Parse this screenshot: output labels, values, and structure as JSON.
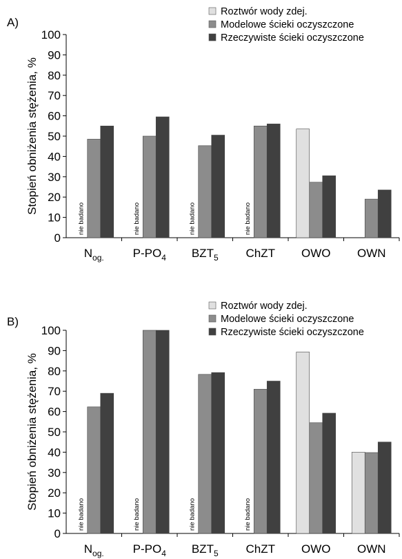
{
  "legend": [
    {
      "label": "Roztwór wody zdej.",
      "color": "#e0e0e0"
    },
    {
      "label": "Modelowe ścieki oczyszczone",
      "color": "#8c8c8c"
    },
    {
      "label": "Rzeczywiste ścieki oczyszczone",
      "color": "#404040"
    }
  ],
  "not_tested_label": "nie badano",
  "chart_data": [
    {
      "type": "bar",
      "panel_label": "A)",
      "ylabel": "Stopień obniżenia stężenia, %",
      "ylim": [
        0,
        100
      ],
      "yticks": [
        0,
        10,
        20,
        30,
        40,
        50,
        60,
        70,
        80,
        90,
        100
      ],
      "categories": [
        {
          "main": "N",
          "sub": "og."
        },
        {
          "main": "P-PO",
          "sub": "4"
        },
        {
          "main": "BZT",
          "sub": "5"
        },
        {
          "main": "ChZT",
          "sub": ""
        },
        {
          "main": "OWO",
          "sub": ""
        },
        {
          "main": "OWN",
          "sub": ""
        }
      ],
      "series": [
        {
          "name": "Roztwór wody zdej.",
          "values": [
            null,
            null,
            null,
            null,
            53.5,
            null
          ]
        },
        {
          "name": "Modelowe ścieki oczyszczone",
          "values": [
            48.5,
            50,
            45.3,
            55,
            27.3,
            19
          ]
        },
        {
          "name": "Rzeczywiste ścieki oczyszczone",
          "values": [
            55,
            59.5,
            50.5,
            56,
            30.5,
            23.5
          ]
        }
      ],
      "not_tested": [
        0,
        1,
        2,
        3
      ]
    },
    {
      "type": "bar",
      "panel_label": "B)",
      "ylabel": "Stopień obniżenia stężenia, %",
      "ylim": [
        0,
        100
      ],
      "yticks": [
        0,
        10,
        20,
        30,
        40,
        50,
        60,
        70,
        80,
        90,
        100
      ],
      "categories": [
        {
          "main": "N",
          "sub": "og."
        },
        {
          "main": "P-PO",
          "sub": "4"
        },
        {
          "main": "BZT",
          "sub": "5"
        },
        {
          "main": "ChZT",
          "sub": ""
        },
        {
          "main": "OWO",
          "sub": ""
        },
        {
          "main": "OWN",
          "sub": ""
        }
      ],
      "series": [
        {
          "name": "Roztwór wody zdej.",
          "values": [
            null,
            null,
            null,
            null,
            89.3,
            40
          ]
        },
        {
          "name": "Modelowe ścieki oczyszczone",
          "values": [
            62.3,
            100,
            78.3,
            71,
            54.5,
            39.8
          ]
        },
        {
          "name": "Rzeczywiste ścieki oczyszczone",
          "values": [
            69,
            100,
            79.2,
            75,
            59.2,
            45
          ]
        }
      ],
      "not_tested": [
        0,
        1,
        2,
        3
      ]
    }
  ]
}
